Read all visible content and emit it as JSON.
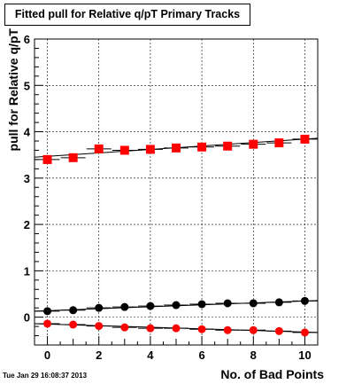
{
  "chart_data": {
    "type": "scatter",
    "title": "Fitted pull for Relative q/pT Primary Tracks",
    "xlabel": "No. of Bad Points",
    "ylabel": "pull for Relative q/pT",
    "xlim": [
      -0.5,
      10.5
    ],
    "ylim": [
      -0.6,
      6
    ],
    "x_ticks": [
      0,
      2,
      4,
      6,
      8,
      10
    ],
    "y_ticks": [
      0,
      1,
      2,
      3,
      4,
      5,
      6
    ],
    "grid": true,
    "legend": "none",
    "x": [
      0,
      1,
      2,
      3,
      4,
      5,
      6,
      7,
      8,
      9,
      10
    ],
    "series": [
      {
        "marker": "square",
        "color": "#ff0000",
        "values": [
          3.4,
          3.44,
          3.63,
          3.6,
          3.62,
          3.65,
          3.67,
          3.69,
          3.73,
          3.76,
          3.84
        ],
        "fit": [
          3.45,
          3.86
        ]
      },
      {
        "marker": "circle",
        "color": "#000000",
        "values": [
          0.13,
          0.15,
          0.2,
          0.22,
          0.24,
          0.26,
          0.28,
          0.3,
          0.3,
          0.32,
          0.35
        ],
        "fit": [
          0.13,
          0.36
        ]
      },
      {
        "marker": "circle",
        "color": "#ff0000",
        "values": [
          -0.14,
          -0.16,
          -0.19,
          -0.22,
          -0.24,
          -0.24,
          -0.26,
          -0.28,
          -0.28,
          -0.3,
          -0.33
        ],
        "fit": [
          -0.14,
          -0.33
        ]
      }
    ]
  },
  "timestamp": "Tue Jan 29 16:08:37 2013"
}
